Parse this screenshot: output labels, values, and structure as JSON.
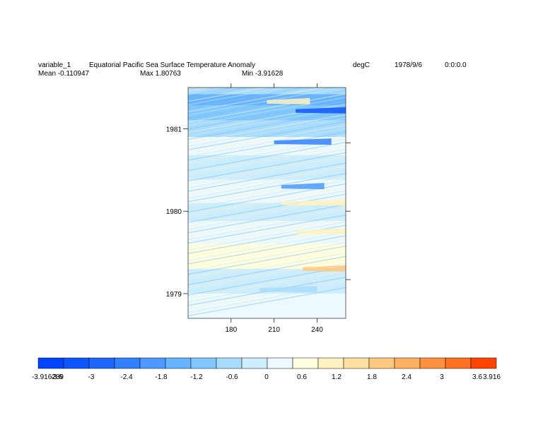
{
  "header": {
    "variable": "variable_1",
    "title": "Equatorial Pacific Sea Surface Temperature Anomaly",
    "units": "degC",
    "date": "1978/9/6",
    "time": "0:0:0.0",
    "mean_label": "Mean -0.110947",
    "max_label": "Max 1.80763",
    "min_label": "Min -3.91628"
  },
  "chart_data": {
    "type": "heatmap",
    "x_ticks": [
      180,
      210,
      240
    ],
    "x_tick_labels": [
      "180",
      "210",
      "240"
    ],
    "y_ticks": [
      1979,
      1980,
      1981
    ],
    "y_tick_labels": [
      "1979",
      "1980",
      "1981"
    ],
    "xlim": [
      150,
      260
    ],
    "ylim": [
      1978.7,
      1981.5
    ],
    "right_ticks": [
      1979.17,
      1980,
      1980.83
    ],
    "top_ticks": [
      180,
      210,
      240
    ],
    "colorbar": {
      "min": -3.916289,
      "max": 3.916289,
      "labels": [
        "-3.916289",
        "-3.6",
        "-3",
        "-2.4",
        "-1.8",
        "-1.2",
        "-0.6",
        "0",
        "0.6",
        "1.2",
        "1.8",
        "2.4",
        "3",
        "3.6",
        "3.916"
      ],
      "colors": [
        "#0044ff",
        "#0f55ff",
        "#1e66ff",
        "#3380ff",
        "#4d99ff",
        "#66b3ff",
        "#80c8ff",
        "#a8dcff",
        "#cceeff",
        "#ecfaff",
        "#ffffe0",
        "#fff2c0",
        "#ffe0a0",
        "#ffc880",
        "#ffb060",
        "#ff9040",
        "#ff7020",
        "#ff4400"
      ]
    },
    "bands": [
      {
        "from": 1981.42,
        "to": 1981.5,
        "value": -0.6
      },
      {
        "from": 1981.28,
        "to": 1981.42,
        "value": -1.4
      },
      {
        "from": 1981.1,
        "to": 1981.28,
        "value": -0.9
      },
      {
        "from": 1980.9,
        "to": 1981.1,
        "value": -0.7
      },
      {
        "from": 1980.68,
        "to": 1980.9,
        "value": 0.3
      },
      {
        "from": 1980.38,
        "to": 1980.68,
        "value": -0.3
      },
      {
        "from": 1980.1,
        "to": 1980.38,
        "value": 0.4
      },
      {
        "from": 1979.88,
        "to": 1980.1,
        "value": -0.4
      },
      {
        "from": 1979.6,
        "to": 1979.88,
        "value": 0.2
      },
      {
        "from": 1979.3,
        "to": 1979.6,
        "value": 0.5
      },
      {
        "from": 1979.0,
        "to": 1979.3,
        "value": -0.2
      },
      {
        "from": 1978.7,
        "to": 1979.0,
        "value": 0.3
      }
    ],
    "features": [
      {
        "y": 1981.22,
        "x0": 225,
        "x1": 260,
        "value": -3.2
      },
      {
        "y": 1980.84,
        "x0": 210,
        "x1": 250,
        "value": -2.6
      },
      {
        "y": 1981.33,
        "x0": 205,
        "x1": 235,
        "value": 1.2
      },
      {
        "y": 1980.3,
        "x0": 215,
        "x1": 245,
        "value": -1.8
      },
      {
        "y": 1980.1,
        "x0": 215,
        "x1": 260,
        "value": 0.9
      },
      {
        "y": 1979.75,
        "x0": 225,
        "x1": 260,
        "value": 1.0
      },
      {
        "y": 1979.3,
        "x0": 230,
        "x1": 260,
        "value": 1.8
      },
      {
        "y": 1979.05,
        "x0": 200,
        "x1": 240,
        "value": -0.8
      }
    ]
  }
}
